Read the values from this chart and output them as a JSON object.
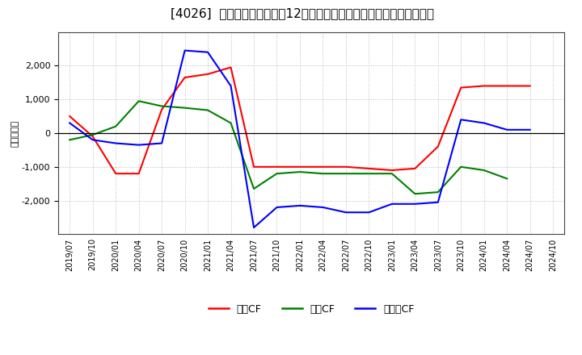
{
  "title": "[4026]  キャッシュフローの12か月移動合計の対前年同期増減額の推移",
  "ylabel": "（百万円）",
  "x_labels": [
    "2019/07",
    "2019/10",
    "2020/01",
    "2020/04",
    "2020/07",
    "2020/10",
    "2021/01",
    "2021/04",
    "2021/07",
    "2021/10",
    "2022/01",
    "2022/04",
    "2022/07",
    "2022/10",
    "2023/01",
    "2023/04",
    "2023/07",
    "2023/10",
    "2024/01",
    "2024/04",
    "2024/07",
    "2024/10"
  ],
  "series": {
    "営業CF": {
      "color": "#ff0000",
      "values": [
        500,
        -100,
        -1200,
        -1200,
        700,
        1650,
        1750,
        1950,
        -1000,
        -1000,
        -1000,
        -1000,
        -1000,
        -1050,
        -1100,
        -1050,
        -400,
        1350,
        1400,
        1400,
        1400,
        null
      ]
    },
    "投資CF": {
      "color": "#008000",
      "values": [
        -200,
        -50,
        200,
        950,
        800,
        750,
        680,
        300,
        -1650,
        -1200,
        -1150,
        -1200,
        -1200,
        -1200,
        -1200,
        -1800,
        -1750,
        -1000,
        -1100,
        -1350,
        null,
        null
      ]
    },
    "フリーCF": {
      "color": "#0000ff",
      "values": [
        300,
        -200,
        -300,
        -350,
        -300,
        2450,
        2400,
        1400,
        -2800,
        -2200,
        -2150,
        -2200,
        -2350,
        -2350,
        -2100,
        -2100,
        -2050,
        400,
        300,
        100,
        100,
        null
      ]
    }
  },
  "ylim": [
    -3000,
    3000
  ],
  "yticks": [
    -2000,
    -1000,
    0,
    1000,
    2000
  ],
  "background_color": "#ffffff",
  "plot_bg_color": "#ffffff",
  "grid_color": "#aaaaaa",
  "title_fontsize": 11,
  "legend_names": [
    "営業CF",
    "投資CF",
    "フリーCF"
  ]
}
